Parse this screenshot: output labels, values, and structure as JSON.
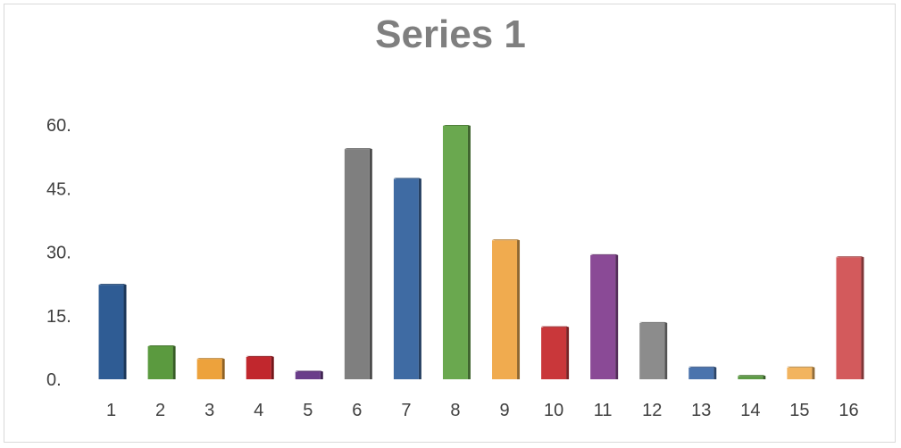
{
  "chart_data": {
    "type": "bar",
    "title": "Series 1",
    "categories": [
      "1",
      "2",
      "3",
      "4",
      "5",
      "6",
      "7",
      "8",
      "9",
      "10",
      "11",
      "12",
      "13",
      "14",
      "15",
      "16"
    ],
    "series": [
      {
        "name": "Series 1",
        "values": [
          22.5,
          8,
          5,
          5.5,
          2,
          54.5,
          47.5,
          60,
          33,
          12.5,
          29.5,
          13.5,
          3,
          1,
          3,
          29
        ]
      }
    ],
    "y_tick_labels": [
      "0.",
      "15.",
      "30.",
      "45.",
      "60."
    ],
    "y_ticks": [
      0,
      15,
      30,
      45,
      60
    ],
    "ylim": [
      0,
      60
    ],
    "xlabel": "",
    "ylabel": "",
    "grid": false,
    "legend": "none",
    "bar_colors": [
      "#2f5c94",
      "#5b9a3f",
      "#eda23c",
      "#c1272d",
      "#6a3d8a",
      "#7f7f7f",
      "#3f6ba3",
      "#6aa84f",
      "#f0ab4f",
      "#c9373a",
      "#8a4a96",
      "#8c8c8c",
      "#4a73ad",
      "#5d9b45",
      "#f2b45f",
      "#d35a5c"
    ]
  }
}
